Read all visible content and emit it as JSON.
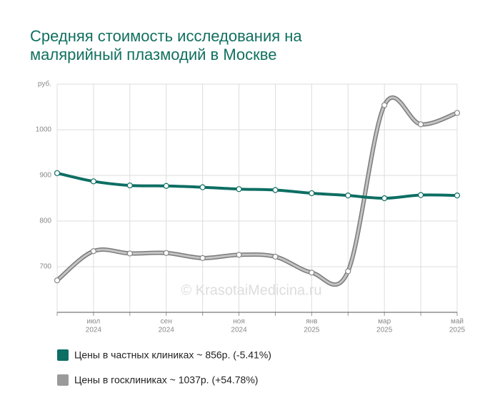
{
  "chart_data": {
    "type": "line",
    "title": "Средняя стоимость исследования на малярийный плазмодий в Москве",
    "watermark": "© KrasotaiMedicina.ru",
    "categories": [
      null,
      "июл",
      null,
      "сен",
      null,
      "ноя",
      null,
      "янв",
      null,
      "мар",
      null,
      "май"
    ],
    "category_years": [
      null,
      "2024",
      null,
      "2024",
      null,
      "2024",
      null,
      "2025",
      null,
      "2025",
      null,
      "2025"
    ],
    "series": [
      {
        "name": "Цены в частных клиниках ~ 856р. (-5.41%)",
        "color": "#0d6e63",
        "values": [
          905,
          887,
          878,
          877,
          874,
          870,
          868,
          861,
          856,
          850,
          857,
          856
        ]
      },
      {
        "name": "Цены в госклиниках ~ 1037р. (+54.78%)",
        "color": "#9a9a9a",
        "values": [
          670,
          734,
          729,
          730,
          719,
          726,
          722,
          687,
          690,
          1054,
          1012,
          1037
        ]
      }
    ],
    "ylim": [
      600,
      1100
    ],
    "yticks": [
      700,
      800,
      900,
      1000,
      {
        "value": 1100,
        "label": "руб."
      }
    ],
    "grid": true
  }
}
